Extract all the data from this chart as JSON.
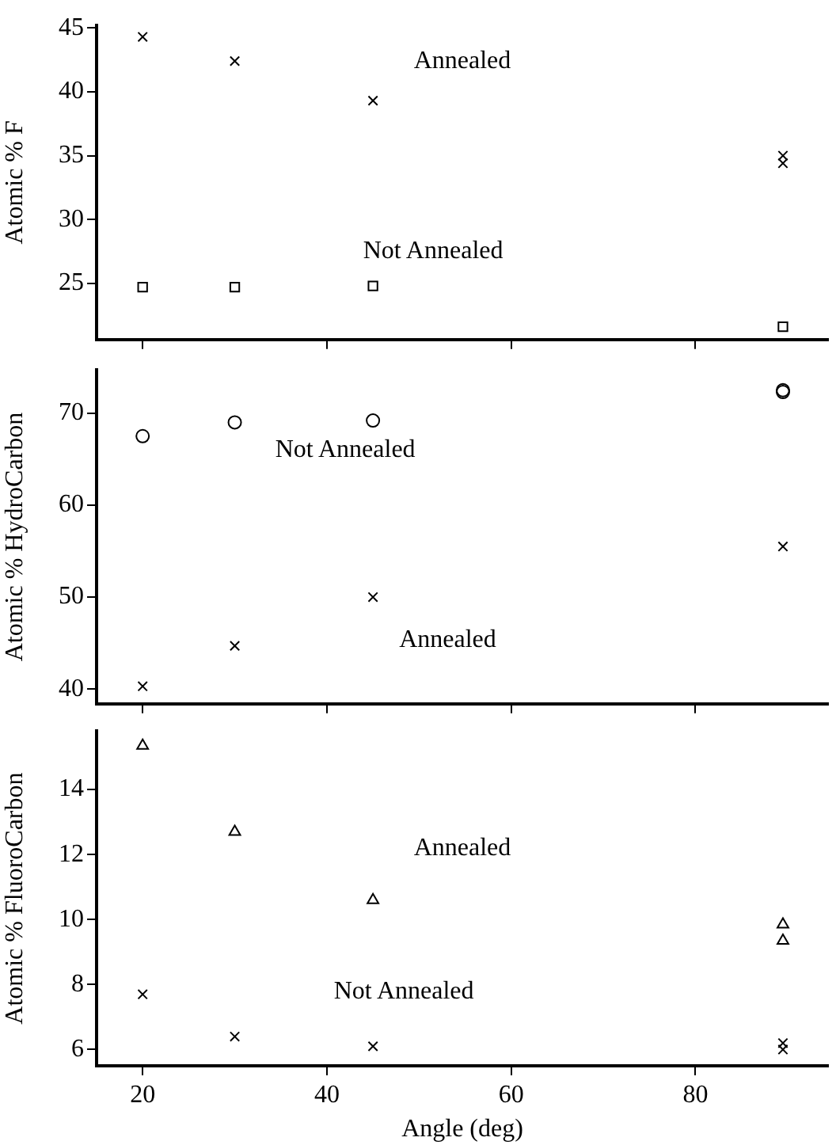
{
  "chart_data": [
    {
      "type": "scatter",
      "ylabel": "Atomic % F",
      "xlim": [
        15,
        94.4
      ],
      "xticks": [
        20,
        40,
        60,
        80
      ],
      "ylim": [
        20.6,
        45.2
      ],
      "yticks": [
        25,
        30,
        35,
        40,
        45
      ],
      "tick_labels": "y",
      "series": [
        {
          "color": "#000000",
          "marker": "cross",
          "x": [
            20,
            30,
            45,
            89.5,
            89.5
          ],
          "values": [
            44.3,
            42.4,
            39.3,
            35.0,
            34.4
          ]
        },
        {
          "color": "#000000",
          "marker": "square",
          "x": [
            20,
            30,
            45,
            89.5
          ],
          "values": [
            24.7,
            24.7,
            24.8,
            21.6
          ]
        }
      ],
      "annotations": [
        "Annealed",
        "Not Annealed"
      ]
    },
    {
      "type": "scatter",
      "ylabel": "Atomic % HydroCarbon",
      "xlim": [
        15,
        94.4
      ],
      "xticks": [
        20,
        40,
        60,
        80
      ],
      "ylim": [
        38.4,
        74.7
      ],
      "yticks": [
        40,
        50,
        60,
        70
      ],
      "tick_labels": "y",
      "series": [
        {
          "color": "#000000",
          "marker": "circle",
          "x": [
            20,
            30,
            45,
            89.5,
            89.5
          ],
          "values": [
            67.5,
            69.0,
            69.2,
            72.5,
            72.3
          ]
        },
        {
          "color": "#000000",
          "marker": "cross",
          "x": [
            20,
            30,
            45,
            89.5
          ],
          "values": [
            40.3,
            44.7,
            50.0,
            55.5
          ]
        }
      ],
      "annotations": [
        "Not Annealed",
        "Annealed"
      ]
    },
    {
      "type": "scatter",
      "ylabel": "Atomic % FluoroCarbon",
      "xlabel": "Angle (deg)",
      "xlim": [
        15,
        94.4
      ],
      "xticks": [
        20,
        40,
        60,
        80
      ],
      "ylim": [
        5.5,
        15.8
      ],
      "yticks": [
        6,
        8,
        10,
        12,
        14
      ],
      "series": [
        {
          "color": "#000000",
          "marker": "triangle",
          "x": [
            20,
            30,
            45,
            89.5,
            89.5
          ],
          "values": [
            15.35,
            12.7,
            10.6,
            9.85,
            9.35
          ]
        },
        {
          "color": "#000000",
          "marker": "cross",
          "x": [
            20,
            30,
            45,
            89.5,
            89.5
          ],
          "values": [
            7.7,
            6.4,
            6.1,
            6.2,
            6.0
          ]
        }
      ],
      "annotations": [
        "Annealed",
        "Not Annealed"
      ]
    }
  ]
}
